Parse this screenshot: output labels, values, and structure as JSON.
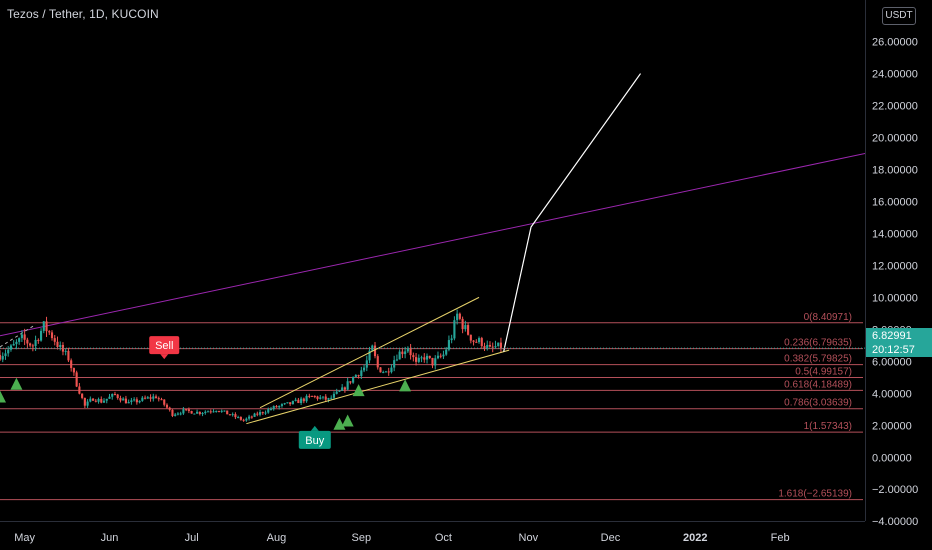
{
  "header": {
    "title": "Tezos / Tether, 1D, KUCOIN",
    "currency_button": "USDT"
  },
  "last_price": {
    "value": "6.82991",
    "countdown": "20:12:57",
    "color": "#26a69a"
  },
  "signals": [
    {
      "label": "Sell",
      "color": "#f23645",
      "date": "2021-06-21",
      "price": 6.2
    },
    {
      "label": "Buy",
      "color": "#089981",
      "date": "2021-08-15",
      "price": 1.9
    }
  ],
  "chart_data": {
    "type": "candlestick",
    "symbol": "Tezos / Tether",
    "interval": "1D",
    "exchange": "KUCOIN",
    "ylim": [
      -5.8,
      28.6
    ],
    "xlim": [
      "2021-04-22",
      "2022-03-04"
    ],
    "y_ticks": [
      "26.00000",
      "24.00000",
      "22.00000",
      "20.00000",
      "18.00000",
      "16.00000",
      "14.00000",
      "12.00000",
      "10.00000",
      "8.00000",
      "6.00000",
      "4.00000",
      "2.00000",
      "0.00000",
      "−2.00000",
      "−4.00000"
    ],
    "x_ticks": [
      {
        "label": "May",
        "date": "2021-05-01"
      },
      {
        "label": "Jun",
        "date": "2021-06-01"
      },
      {
        "label": "Jul",
        "date": "2021-07-01"
      },
      {
        "label": "Aug",
        "date": "2021-08-01"
      },
      {
        "label": "Sep",
        "date": "2021-09-01"
      },
      {
        "label": "Oct",
        "date": "2021-10-01"
      },
      {
        "label": "Nov",
        "date": "2021-11-01"
      },
      {
        "label": "Dec",
        "date": "2021-12-01"
      },
      {
        "label": "2022",
        "date": "2022-01-01",
        "bold": true
      },
      {
        "label": "Feb",
        "date": "2022-02-01"
      }
    ],
    "price_path": [
      [
        "2021-04-22",
        6.4
      ],
      [
        "2021-04-26",
        6.8
      ],
      [
        "2021-04-30",
        7.4
      ],
      [
        "2021-05-04",
        7.0
      ],
      [
        "2021-05-08",
        8.2
      ],
      [
        "2021-05-11",
        7.6
      ],
      [
        "2021-05-14",
        6.8
      ],
      [
        "2021-05-17",
        6.2
      ],
      [
        "2021-05-20",
        4.6
      ],
      [
        "2021-05-23",
        3.2
      ],
      [
        "2021-05-26",
        3.7
      ],
      [
        "2021-05-29",
        3.5
      ],
      [
        "2021-06-03",
        3.9
      ],
      [
        "2021-06-08",
        3.4
      ],
      [
        "2021-06-13",
        3.6
      ],
      [
        "2021-06-18",
        3.8
      ],
      [
        "2021-06-21",
        3.3
      ],
      [
        "2021-06-24",
        2.7
      ],
      [
        "2021-06-28",
        2.9
      ],
      [
        "2021-07-04",
        2.8
      ],
      [
        "2021-07-10",
        3.0
      ],
      [
        "2021-07-16",
        2.6
      ],
      [
        "2021-07-20",
        2.3
      ],
      [
        "2021-07-25",
        2.7
      ],
      [
        "2021-07-31",
        3.1
      ],
      [
        "2021-08-07",
        3.4
      ],
      [
        "2021-08-14",
        3.8
      ],
      [
        "2021-08-20",
        3.6
      ],
      [
        "2021-08-25",
        4.2
      ],
      [
        "2021-08-29",
        5.0
      ],
      [
        "2021-09-02",
        5.6
      ],
      [
        "2021-09-05",
        6.8
      ],
      [
        "2021-09-07",
        5.6
      ],
      [
        "2021-09-10",
        5.3
      ],
      [
        "2021-09-14",
        6.4
      ],
      [
        "2021-09-18",
        6.9
      ],
      [
        "2021-09-21",
        5.8
      ],
      [
        "2021-09-24",
        6.3
      ],
      [
        "2021-09-27",
        5.9
      ],
      [
        "2021-10-01",
        6.4
      ],
      [
        "2021-10-04",
        7.6
      ],
      [
        "2021-10-06",
        8.9
      ],
      [
        "2021-10-09",
        8.0
      ],
      [
        "2021-10-12",
        7.3
      ],
      [
        "2021-10-15",
        7.2
      ],
      [
        "2021-10-18",
        6.7
      ],
      [
        "2021-10-20",
        6.9
      ],
      [
        "2021-10-22",
        6.83
      ]
    ],
    "drawings": {
      "purple_trendline": {
        "color": "#9c27b0",
        "from": [
          "2021-04-22",
          7.6
        ],
        "to": [
          "2022-03-04",
          19.0
        ]
      },
      "yellow_channel": {
        "color": "#e8d36a",
        "upper": {
          "from": [
            "2021-07-26",
            3.1
          ],
          "to": [
            "2021-10-14",
            10.0
          ]
        },
        "lower": {
          "from": [
            "2021-07-21",
            2.1
          ],
          "to": [
            "2021-10-25",
            6.7
          ]
        }
      },
      "white_projection": {
        "color": "#ffffff",
        "points": [
          [
            "2021-10-23",
            6.6
          ],
          [
            "2021-11-02",
            14.4
          ],
          [
            "2021-12-12",
            24.0
          ]
        ]
      },
      "dashed_segment": {
        "from": [
          "2021-04-22",
          6.9
        ],
        "to": [
          "2021-05-05",
          8.3
        ]
      }
    },
    "fibonacci": {
      "color": "#b4505a",
      "levels": [
        {
          "ratio": "0",
          "price": 8.40971,
          "label": "0(8.40971)"
        },
        {
          "ratio": "0.236",
          "price": 6.79635,
          "label": "0.236(6.79635)"
        },
        {
          "ratio": "0.382",
          "price": 5.79825,
          "label": "0.382(5.79825)"
        },
        {
          "ratio": "0.5",
          "price": 4.99157,
          "label": "0.5(4.99157)"
        },
        {
          "ratio": "0.618",
          "price": 4.18489,
          "label": "0.618(4.18489)"
        },
        {
          "ratio": "0.786",
          "price": 3.03639,
          "label": "0.786(3.03639)"
        },
        {
          "ratio": "1",
          "price": 1.57343,
          "label": "1(1.57343)"
        },
        {
          "ratio": "1.618",
          "price": -2.65139,
          "label": "1.618(−2.65139)"
        }
      ]
    },
    "triangle_markers": [
      {
        "date": "2021-04-22",
        "price": 3.8
      },
      {
        "date": "2021-04-28",
        "price": 4.6
      },
      {
        "date": "2021-08-24",
        "price": 2.1
      },
      {
        "date": "2021-08-27",
        "price": 2.3
      },
      {
        "date": "2021-08-31",
        "price": 4.2
      },
      {
        "date": "2021-09-17",
        "price": 4.5
      }
    ],
    "colors": {
      "up": "#26a69a",
      "down": "#ef5350",
      "background": "#000000",
      "axis_text": "#d1d4dc"
    },
    "grid": false
  }
}
